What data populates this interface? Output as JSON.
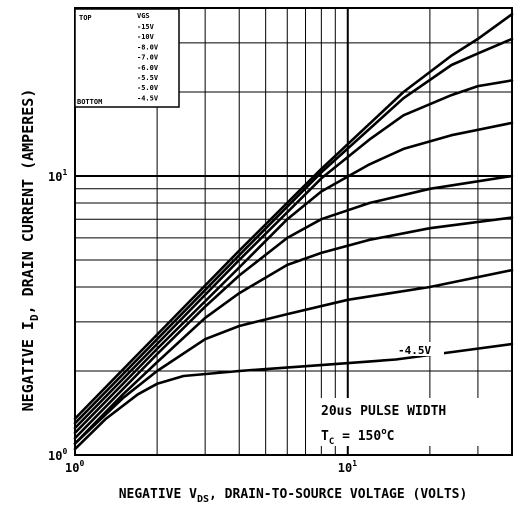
{
  "chart_data": {
    "type": "line",
    "x_scale": "log",
    "y_scale": "log",
    "xlim": [
      1,
      40
    ],
    "ylim": [
      1,
      40
    ],
    "xlabel": "NEGATIVE V",
    "xlabel_sub": "DS",
    "xlabel_rest": ", DRAIN-TO-SOURCE VOLTAGE (VOLTS)",
    "ylabel": "NEGATIVE I",
    "ylabel_sub": "D",
    "ylabel_rest": ", DRAIN CURRENT (AMPERES)",
    "x_ticks": [
      {
        "value": 1,
        "base": "10",
        "exp": "0"
      },
      {
        "value": 10,
        "base": "10",
        "exp": "1"
      }
    ],
    "y_ticks": [
      {
        "value": 1,
        "base": "10",
        "exp": "0"
      },
      {
        "value": 10,
        "base": "10",
        "exp": "1"
      }
    ],
    "grid": true,
    "legend": {
      "placement": "top-left",
      "header": "VGS",
      "top_label": "TOP",
      "bottom_label": "BOTTOM",
      "entries": [
        "-15V",
        "-10V",
        "-8.0V",
        "-7.0V",
        "-6.0V",
        "-5.5V",
        "-5.0V",
        "-4.5V"
      ]
    },
    "annotations": {
      "curve_label": "-4.5V",
      "pulse_width": "20us PULSE WIDTH",
      "temp_prefix": "T",
      "temp_sub": "C",
      "temp_value": " = 150",
      "temp_sup": "o",
      "temp_unit": "C"
    },
    "series": [
      {
        "vgs": -15,
        "values": [
          [
            1.0,
            1.35
          ],
          [
            2.0,
            2.7
          ],
          [
            4.0,
            5.4
          ],
          [
            8.0,
            10.6
          ],
          [
            16.0,
            20.0
          ],
          [
            24.0,
            27.0
          ],
          [
            30.0,
            31.0
          ],
          [
            40.0,
            38.0
          ]
        ]
      },
      {
        "vgs": -10,
        "values": [
          [
            1.0,
            1.3
          ],
          [
            2.0,
            2.6
          ],
          [
            4.0,
            5.2
          ],
          [
            8.0,
            10.3
          ],
          [
            16.0,
            19.0
          ],
          [
            24.0,
            25.0
          ],
          [
            30.0,
            27.5
          ],
          [
            40.0,
            31.0
          ]
        ]
      },
      {
        "vgs": -8.0,
        "values": [
          [
            1.0,
            1.25
          ],
          [
            2.0,
            2.5
          ],
          [
            4.0,
            5.0
          ],
          [
            8.0,
            9.8
          ],
          [
            12.0,
            13.5
          ],
          [
            16.0,
            16.5
          ],
          [
            24.0,
            19.5
          ],
          [
            30.0,
            21.0
          ],
          [
            40.0,
            22.0
          ]
        ]
      },
      {
        "vgs": -7.0,
        "values": [
          [
            1.0,
            1.2
          ],
          [
            2.0,
            2.4
          ],
          [
            4.0,
            4.7
          ],
          [
            6.0,
            7.0
          ],
          [
            8.0,
            8.8
          ],
          [
            12.0,
            11.0
          ],
          [
            16.0,
            12.5
          ],
          [
            24.0,
            14.0
          ],
          [
            40.0,
            15.5
          ]
        ]
      },
      {
        "vgs": -6.0,
        "values": [
          [
            1.0,
            1.15
          ],
          [
            2.0,
            2.3
          ],
          [
            3.0,
            3.4
          ],
          [
            4.0,
            4.4
          ],
          [
            6.0,
            6.0
          ],
          [
            8.0,
            7.0
          ],
          [
            12.0,
            8.0
          ],
          [
            20.0,
            9.0
          ],
          [
            40.0,
            10.0
          ]
        ]
      },
      {
        "vgs": -5.5,
        "values": [
          [
            1.0,
            1.1
          ],
          [
            1.5,
            1.65
          ],
          [
            2.0,
            2.15
          ],
          [
            3.0,
            3.1
          ],
          [
            4.0,
            3.8
          ],
          [
            6.0,
            4.8
          ],
          [
            8.0,
            5.3
          ],
          [
            12.0,
            5.9
          ],
          [
            20.0,
            6.5
          ],
          [
            40.0,
            7.1
          ]
        ]
      },
      {
        "vgs": -5.0,
        "values": [
          [
            1.0,
            1.1
          ],
          [
            1.5,
            1.6
          ],
          [
            2.0,
            2.0
          ],
          [
            3.0,
            2.6
          ],
          [
            4.0,
            2.9
          ],
          [
            6.0,
            3.2
          ],
          [
            10.0,
            3.6
          ],
          [
            20.0,
            4.0
          ],
          [
            40.0,
            4.6
          ]
        ]
      },
      {
        "vgs": -4.5,
        "values": [
          [
            1.0,
            1.05
          ],
          [
            1.3,
            1.35
          ],
          [
            1.7,
            1.65
          ],
          [
            2.0,
            1.8
          ],
          [
            2.5,
            1.92
          ],
          [
            4.0,
            2.0
          ],
          [
            8.0,
            2.1
          ],
          [
            15.0,
            2.2
          ],
          [
            25.0,
            2.35
          ],
          [
            40.0,
            2.5
          ]
        ]
      }
    ]
  }
}
